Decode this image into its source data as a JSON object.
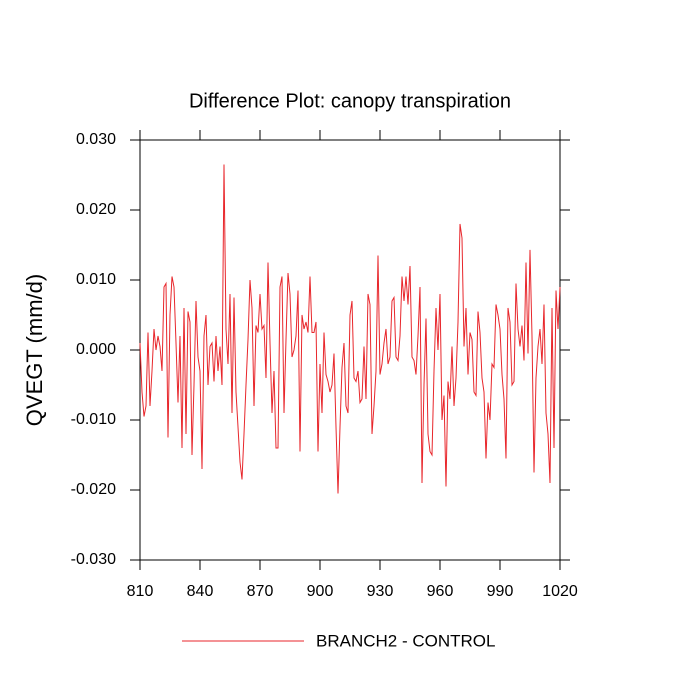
{
  "chart_data": {
    "type": "line",
    "title": "Difference Plot: canopy transpiration",
    "y_label": "QVEGT  (mm/d)",
    "x": [
      810,
      811,
      812,
      813,
      814,
      815,
      816,
      817,
      818,
      819,
      820,
      821,
      822,
      823,
      824,
      825,
      826,
      827,
      828,
      829,
      830,
      831,
      832,
      833,
      834,
      835,
      836,
      837,
      838,
      839,
      840,
      841,
      842,
      843,
      844,
      845,
      846,
      847,
      848,
      849,
      850,
      851,
      852,
      853,
      854,
      855,
      856,
      857,
      858,
      859,
      860,
      861,
      862,
      863,
      864,
      865,
      866,
      867,
      868,
      869,
      870,
      871,
      872,
      873,
      874,
      875,
      876,
      877,
      878,
      879,
      880,
      881,
      882,
      883,
      884,
      885,
      886,
      887,
      888,
      889,
      890,
      891,
      892,
      893,
      894,
      895,
      896,
      897,
      898,
      899,
      900,
      901,
      902,
      903,
      904,
      905,
      906,
      907,
      908,
      909,
      910,
      911,
      912,
      913,
      914,
      915,
      916,
      917,
      918,
      919,
      920,
      921,
      922,
      923,
      924,
      925,
      926,
      927,
      928,
      929,
      930,
      931,
      932,
      933,
      934,
      935,
      936,
      937,
      938,
      939,
      940,
      941,
      942,
      943,
      944,
      945,
      946,
      947,
      948,
      949,
      950,
      951,
      952,
      953,
      954,
      955,
      956,
      957,
      958,
      959,
      960,
      961,
      962,
      963,
      964,
      965,
      966,
      967,
      968,
      969,
      970,
      971,
      972,
      973,
      974,
      975,
      976,
      977,
      978,
      979,
      980,
      981,
      982,
      983,
      984,
      985,
      986,
      987,
      988,
      989,
      990,
      991,
      992,
      993,
      994,
      995,
      996,
      997,
      998,
      999,
      1000,
      1001,
      1002,
      1003,
      1004,
      1005,
      1006,
      1007,
      1008,
      1009,
      1010,
      1011,
      1012,
      1013,
      1014,
      1015,
      1016,
      1017,
      1018,
      1019,
      1020
    ],
    "series": [
      {
        "name": "BRANCH2 - CONTROL",
        "color": "#e8262b",
        "values": [
          0.001,
          -0.006,
          -0.0095,
          -0.008,
          0.0025,
          -0.008,
          -0.003,
          0.003,
          0.0,
          0.002,
          0.0005,
          -0.003,
          0.009,
          0.0095,
          -0.0125,
          0.005,
          0.0105,
          0.009,
          0.001,
          -0.0075,
          0.002,
          -0.014,
          0.006,
          -0.012,
          0.0055,
          0.004,
          -0.015,
          -0.005,
          0.007,
          -0.001,
          -0.003,
          -0.017,
          0.002,
          0.005,
          -0.005,
          0.0005,
          0.001,
          -0.0045,
          0.002,
          -0.003,
          0.0005,
          -0.005,
          0.0265,
          0.003,
          -0.002,
          0.008,
          -0.009,
          0.0075,
          -0.006,
          -0.011,
          -0.016,
          -0.0185,
          -0.012,
          -0.005,
          0.0015,
          0.01,
          0.006,
          -0.008,
          0.0035,
          0.0025,
          0.008,
          0.003,
          0.0035,
          -0.004,
          0.0125,
          0.001,
          -0.009,
          -0.003,
          -0.014,
          -0.014,
          0.009,
          0.0105,
          -0.009,
          0.0015,
          0.011,
          0.008,
          -0.001,
          0.0,
          0.002,
          0.0085,
          -0.0145,
          0.005,
          0.003,
          0.004,
          0.0025,
          0.0105,
          0.0025,
          0.0025,
          0.004,
          -0.0145,
          -0.002,
          -0.009,
          0.0025,
          -0.0035,
          -0.0045,
          -0.006,
          -0.005,
          -0.0005,
          -0.011,
          -0.0205,
          -0.011,
          -0.0025,
          0.001,
          -0.008,
          -0.009,
          0.005,
          0.007,
          -0.004,
          -0.0045,
          -0.003,
          -0.0075,
          -0.007,
          0.0005,
          -0.007,
          0.008,
          0.0065,
          -0.012,
          -0.008,
          -0.003,
          0.0135,
          -0.0035,
          -0.002,
          0.001,
          0.003,
          -0.002,
          -0.001,
          0.007,
          0.0075,
          -0.001,
          -0.0015,
          0.002,
          0.0105,
          0.007,
          0.0105,
          0.0065,
          0.012,
          -0.001,
          -0.0015,
          -0.0035,
          0.002,
          0.009,
          -0.019,
          -0.005,
          0.0045,
          -0.012,
          -0.0145,
          -0.015,
          -0.003,
          0.006,
          0.0,
          0.008,
          -0.01,
          -0.0065,
          -0.0195,
          -0.0045,
          -0.007,
          0.0005,
          -0.008,
          -0.004,
          0.004,
          0.018,
          0.016,
          0.0005,
          0.006,
          -0.0035,
          0.0025,
          0.0015,
          -0.006,
          -0.0065,
          0.0055,
          0.0025,
          -0.004,
          -0.006,
          -0.0155,
          -0.0075,
          -0.01,
          -0.002,
          -0.0025,
          0.0065,
          0.005,
          0.003,
          -0.0035,
          -0.007,
          -0.0155,
          0.006,
          0.004,
          -0.005,
          -0.0045,
          0.0095,
          0.003,
          0.0005,
          0.0035,
          -0.0015,
          0.0125,
          -0.0005,
          0.0143,
          0.002,
          -0.0175,
          -0.004,
          0.0005,
          0.003,
          -0.002,
          0.0065,
          -0.009,
          -0.012,
          -0.019,
          0.006,
          -0.014,
          0.0085,
          0.003,
          0.009
        ]
      }
    ],
    "xlim": [
      810,
      1020
    ],
    "xticks": [
      810,
      840,
      870,
      900,
      930,
      960,
      990,
      1020
    ],
    "ylim": [
      -0.03,
      0.03
    ],
    "yticks": [
      {
        "value": -0.03,
        "label": "-0.030"
      },
      {
        "value": -0.02,
        "label": "-0.020"
      },
      {
        "value": -0.01,
        "label": "-0.010"
      },
      {
        "value": 0,
        "label": "0.000"
      },
      {
        "value": 0.01,
        "label": "0.010"
      },
      {
        "value": 0.02,
        "label": "0.020"
      },
      {
        "value": 0.03,
        "label": "0.030"
      }
    ],
    "legend": "bottom"
  }
}
